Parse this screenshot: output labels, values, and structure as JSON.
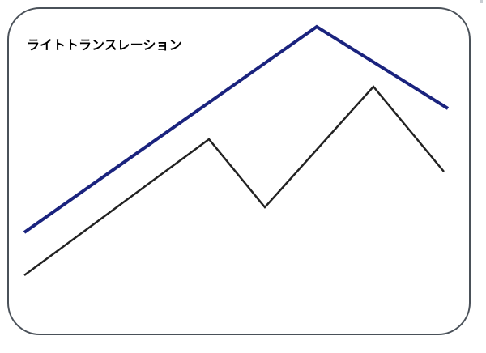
{
  "title": "ライトトランスレーション",
  "colors": {
    "frame_border": "#4a5159",
    "upper_line": "#1a237e",
    "lower_line": "#222222",
    "background": "#ffffff"
  },
  "lines": [
    {
      "id": "upper",
      "color": "#1a237e",
      "role": "upper-trend-line"
    },
    {
      "id": "lower",
      "color": "#222222",
      "role": "lower-price-line"
    }
  ]
}
